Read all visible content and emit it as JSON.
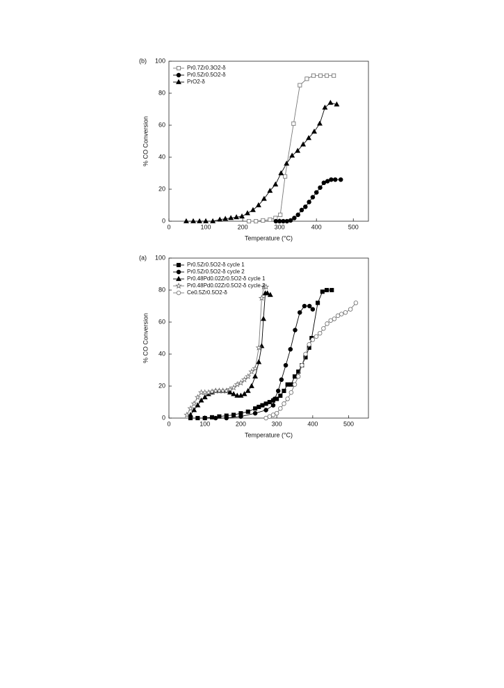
{
  "chart_data": [
    {
      "type": "line",
      "panel_label": "(b)",
      "x_label": "Temperature (°C)",
      "y_label": "% CO Conversion",
      "xlim": [
        0,
        541
      ],
      "ylim": [
        0,
        100
      ],
      "xticks": [
        0,
        100,
        200,
        300,
        400,
        500
      ],
      "yticks": [
        0,
        20,
        40,
        60,
        80,
        100
      ],
      "series": [
        {
          "name": "Pr0.7Zr0.3O2-δ",
          "color": "#777777",
          "marker": "open-square",
          "x": [
            217,
            236,
            255,
            274,
            289,
            302,
            315,
            338,
            355,
            374,
            392,
            411,
            428,
            447
          ],
          "values": [
            0,
            0,
            0.5,
            1,
            2,
            4,
            28,
            61,
            85,
            89,
            91,
            91,
            91,
            91
          ]
        },
        {
          "name": "Pr0.5Zr0.5O2-δ",
          "color": "#000000",
          "marker": "filled-circle",
          "x": [
            290,
            300,
            310,
            320,
            330,
            340,
            350,
            360,
            370,
            380,
            390,
            400,
            410,
            420,
            430,
            440,
            451,
            466
          ],
          "values": [
            0,
            0,
            0,
            0,
            0.5,
            2,
            4,
            7,
            9,
            12,
            15,
            18,
            21,
            24,
            25,
            26,
            26,
            26
          ]
        },
        {
          "name": "PrO2-δ",
          "color": "#000000",
          "marker": "filled-triangle",
          "x": [
            47,
            66,
            83,
            100,
            119,
            138,
            153,
            168,
            183,
            198,
            213,
            228,
            243,
            258,
            274,
            289,
            304,
            319,
            334,
            349,
            364,
            379,
            394,
            409,
            423,
            438,
            455
          ],
          "values": [
            0,
            0,
            0,
            0,
            0,
            1,
            1.5,
            2,
            2.5,
            3,
            5,
            7,
            10,
            14,
            19,
            23,
            30,
            36,
            41,
            44,
            48,
            52,
            56,
            61,
            71,
            74,
            73
          ]
        }
      ]
    },
    {
      "type": "line",
      "panel_label": "(a)",
      "x_label": "Temperature (°C)",
      "y_label": "% CO Conversion",
      "xlim": [
        0,
        555
      ],
      "ylim": [
        0,
        100
      ],
      "xticks": [
        0,
        100,
        200,
        300,
        400,
        500
      ],
      "yticks": [
        0,
        20,
        40,
        60,
        80,
        100
      ],
      "series": [
        {
          "name": "Pr0.5Zr0.5O2-δ cycle 1",
          "color": "#000000",
          "marker": "filled-square",
          "x": [
            60,
            80,
            100,
            120,
            140,
            160,
            180,
            200,
            220,
            240,
            250,
            260,
            270,
            280,
            290,
            300,
            310,
            320,
            330,
            340,
            350,
            360,
            370,
            380,
            390,
            397,
            414,
            427,
            439,
            453
          ],
          "values": [
            0,
            0,
            0,
            0.5,
            1,
            1.5,
            2,
            3,
            4,
            6,
            7,
            8,
            9,
            10,
            11,
            12,
            14,
            17,
            21,
            21,
            26,
            29,
            33,
            38,
            44,
            50,
            72,
            79,
            80,
            80
          ]
        },
        {
          "name": "Pr0.5Zr0.5O2-δ cycle 2",
          "color": "#000000",
          "marker": "filled-circle",
          "x": [
            100,
            130,
            160,
            200,
            240,
            270,
            290,
            294,
            304,
            313,
            325,
            338,
            351,
            364,
            377,
            391,
            400
          ],
          "values": [
            0,
            0,
            0,
            1,
            3,
            5,
            8,
            12,
            17,
            24,
            33,
            43,
            55,
            66,
            70,
            70,
            68
          ]
        },
        {
          "name": "Pr0.48Pd0.02Zr0.5O2-δ cycle 1",
          "color": "#000000",
          "marker": "filled-triangle",
          "x": [
            60,
            70,
            80,
            90,
            100,
            110,
            120,
            130,
            140,
            150,
            160,
            170,
            180,
            190,
            200,
            210,
            220,
            230,
            240,
            250,
            258,
            263,
            268,
            274,
            282
          ],
          "values": [
            2,
            5,
            8,
            11,
            13,
            15,
            16,
            17,
            17,
            17,
            17,
            16,
            15,
            14,
            14,
            15,
            17,
            20,
            26,
            35,
            45,
            62,
            78,
            78,
            77
          ]
        },
        {
          "name": "Pr0.48Pd0.02Zr0.5O2-δ cycle 2",
          "color": "#777777",
          "marker": "open-star",
          "x": [
            50,
            60,
            70,
            80,
            90,
            100,
            110,
            120,
            130,
            140,
            150,
            160,
            170,
            180,
            190,
            200,
            210,
            220,
            230,
            240,
            250,
            258,
            264,
            270
          ],
          "values": [
            2,
            6,
            9,
            13,
            16,
            16,
            16,
            16.5,
            17,
            17,
            17,
            17,
            18,
            19,
            21,
            22,
            24,
            26,
            29,
            31,
            44,
            75,
            82,
            82
          ]
        },
        {
          "name": "Ce0.5Zr0.5O2-δ",
          "color": "#777777",
          "marker": "open-circle",
          "x": [
            270,
            280,
            290,
            300,
            310,
            320,
            330,
            340,
            350,
            360,
            370,
            380,
            390,
            400,
            410,
            420,
            430,
            440,
            450,
            460,
            470,
            480,
            491,
            505,
            520
          ],
          "values": [
            0,
            1,
            2,
            3,
            6,
            9,
            12,
            16,
            21,
            26,
            33,
            40,
            46,
            49,
            51,
            53,
            56,
            59,
            61,
            62,
            64,
            65,
            66,
            68,
            72
          ]
        }
      ]
    }
  ]
}
